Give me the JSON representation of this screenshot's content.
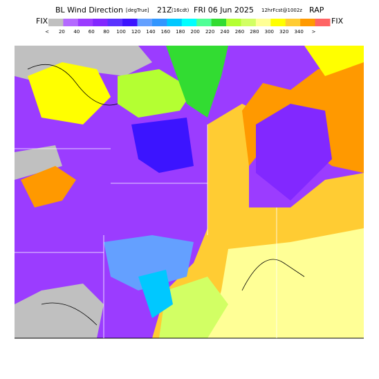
{
  "header": {
    "title": "BL Wind Direction",
    "units": "[degTrue]",
    "time": "21Z",
    "local_time": "(16cdt)",
    "date": "FRI 06 Jun 2025",
    "forecast": "12hrFcst@1002z",
    "model": "RAP"
  },
  "legend": {
    "left_label": "FIX",
    "right_label": "FIX",
    "labels": [
      "<",
      "20",
      "40",
      "60",
      "80",
      "100",
      "120",
      "140",
      "160",
      "180",
      "200",
      "220",
      "240",
      "260",
      "280",
      "300",
      "320",
      "340",
      ">"
    ],
    "colors": [
      "#c0c0c0",
      "#b469ff",
      "#9b3cff",
      "#8228ff",
      "#5a32ff",
      "#3c14ff",
      "#64a0ff",
      "#3296ff",
      "#00c8ff",
      "#00ffff",
      "#50ff96",
      "#32dc32",
      "#b4ff32",
      "#d2ff64",
      "#ffff96",
      "#ffff00",
      "#ffcc33",
      "#ff9900",
      "#ff6464"
    ]
  }
}
